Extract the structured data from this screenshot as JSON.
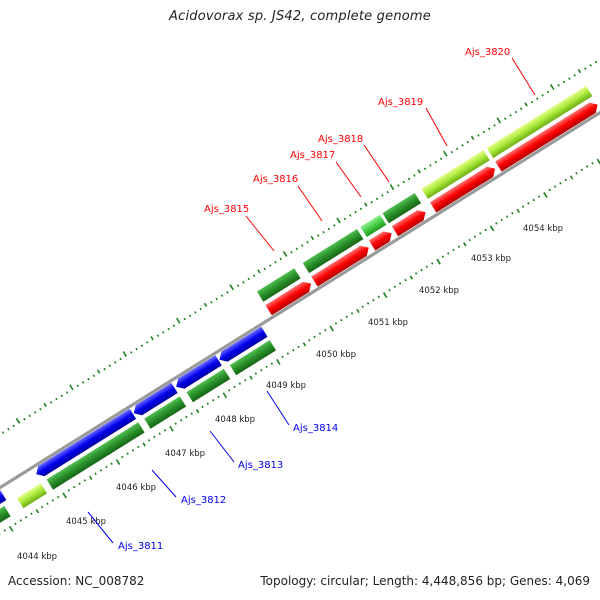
{
  "header": {
    "title": "Acidovorax sp. JS42, complete genome"
  },
  "footer": {
    "accession": "Accession: NC_008782",
    "summary": "Topology: circular; Length: 4,448,856 bp; Genes: 4,069"
  },
  "colors": {
    "top_strand_gene": "#ff0000",
    "bottom_strand_gene": "#0000ee",
    "cds_green": "#2a8f2a",
    "cds_light_green": "#44cc44",
    "cds_yellow_green": "#a8e838",
    "backbone": "#9a9a9a",
    "tick_green": "#1d7f1d"
  },
  "ruler": {
    "unit": "kbp",
    "labels": [
      "4044 kbp",
      "4045 kbp",
      "4046 kbp",
      "4047 kbp",
      "4048 kbp",
      "4049 kbp",
      "4050 kbp",
      "4051 kbp",
      "4052 kbp",
      "4053 kbp",
      "4054 kbp"
    ]
  },
  "gene_labels": {
    "top": [
      "Ajs_3815",
      "Ajs_3816",
      "Ajs_3817",
      "Ajs_3818",
      "Ajs_3819",
      "Ajs_3820"
    ],
    "bottom": [
      "Ajs_3811",
      "Ajs_3812",
      "Ajs_3813",
      "Ajs_3814"
    ]
  }
}
